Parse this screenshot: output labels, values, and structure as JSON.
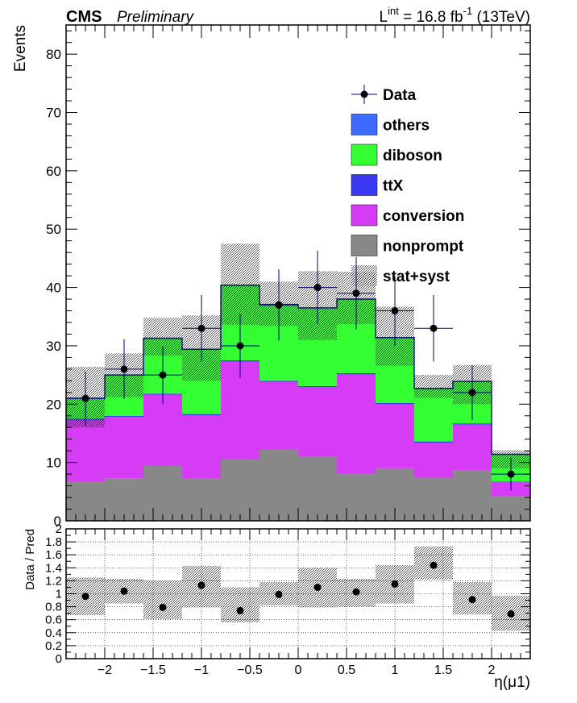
{
  "header": {
    "experiment": "CMS",
    "status": "Preliminary",
    "lumi_prefix": "L",
    "lumi_sup": "int",
    "lumi_value": " = 16.8 fb",
    "lumi_unit_sup": "-1",
    "lumi_energy": " (13TeV)"
  },
  "chart_data": [
    {
      "type": "bar",
      "stacked": true,
      "ylabel": "Events",
      "ylim": [
        0,
        85
      ],
      "yticks": [
        0,
        10,
        20,
        30,
        40,
        50,
        60,
        70,
        80
      ],
      "xlim": [
        -2.4,
        2.4
      ],
      "bin_edges": [
        -2.4,
        -2.0,
        -1.6,
        -1.2,
        -0.8,
        -0.4,
        0.0,
        0.4,
        0.8,
        1.2,
        1.6,
        2.0,
        2.4
      ],
      "series": [
        {
          "name": "nonprompt",
          "color": "#888888",
          "values": [
            6.7,
            7.3,
            9.4,
            7.2,
            10.5,
            12.3,
            11.0,
            8.0,
            9.0,
            7.4,
            8.6,
            4.2
          ]
        },
        {
          "name": "conversion",
          "color": "#d63cf5",
          "values": [
            10.6,
            10.5,
            12.2,
            10.9,
            16.8,
            11.5,
            11.9,
            17.1,
            11.0,
            6.0,
            7.9,
            2.4
          ]
        },
        {
          "name": "ttX",
          "color": "#3a3af5",
          "values": [
            0.2,
            0.2,
            0.2,
            0.2,
            0.2,
            0.2,
            0.2,
            0.2,
            0.2,
            0.2,
            0.2,
            0.1
          ]
        },
        {
          "name": "diboson",
          "color": "#33ff33",
          "values": [
            3.4,
            6.9,
            9.4,
            11.0,
            12.8,
            13.0,
            13.3,
            12.6,
            11.1,
            9.0,
            7.1,
            4.6
          ]
        },
        {
          "name": "others",
          "color": "#3d6bff",
          "values": [
            0.1,
            0.1,
            0.1,
            0.1,
            0.1,
            0.1,
            0.1,
            0.1,
            0.1,
            0.1,
            0.1,
            0.1
          ]
        }
      ],
      "uncertainty": {
        "name": "stat+syst",
        "low": [
          16.0,
          21.2,
          28.3,
          24.0,
          33.6,
          33.4,
          31.0,
          33.7,
          26.6,
          21.1,
          20.0,
          9.0
        ],
        "high": [
          26.4,
          28.7,
          34.8,
          35.2,
          47.5,
          41.0,
          42.8,
          42.7,
          36.7,
          25.0,
          26.7,
          12.1
        ]
      },
      "data": {
        "name": "Data",
        "x": [
          -2.2,
          -1.8,
          -1.4,
          -1.0,
          -0.6,
          -0.2,
          0.2,
          0.6,
          1.0,
          1.4,
          1.8,
          2.2
        ],
        "y": [
          21,
          26,
          25,
          33,
          30,
          37,
          40,
          39,
          36,
          33,
          22,
          8
        ],
        "yerr": [
          4.6,
          5.1,
          5.0,
          5.7,
          5.5,
          6.1,
          6.3,
          6.2,
          6.0,
          5.7,
          4.7,
          2.8
        ]
      },
      "legend_position": "top-right"
    },
    {
      "type": "scatter",
      "ylabel": "Data / Pred",
      "xlabel": "η(μ1)",
      "ylim": [
        0,
        2
      ],
      "yticks": [
        0,
        0.2,
        0.4,
        0.6,
        0.8,
        1,
        1.2,
        1.4,
        1.6,
        1.8,
        2
      ],
      "xticks": [
        -2,
        -1.5,
        -1,
        -0.5,
        0,
        0.5,
        1,
        1.5,
        2
      ],
      "xlim": [
        -2.4,
        2.4
      ],
      "grid": true,
      "x": [
        -2.2,
        -1.8,
        -1.4,
        -1.0,
        -0.6,
        -0.2,
        0.2,
        0.6,
        1.0,
        1.4,
        1.8,
        2.2
      ],
      "ratio": [
        0.96,
        1.04,
        0.79,
        1.13,
        0.74,
        0.99,
        1.1,
        1.03,
        1.15,
        1.44,
        0.91,
        0.69
      ],
      "band_low": [
        0.67,
        0.85,
        0.61,
        0.79,
        0.56,
        0.82,
        0.79,
        0.8,
        0.85,
        1.22,
        0.68,
        0.43
      ],
      "band_high": [
        1.25,
        1.23,
        1.2,
        1.43,
        1.1,
        1.18,
        1.4,
        1.23,
        1.44,
        1.73,
        1.18,
        0.97
      ]
    }
  ]
}
